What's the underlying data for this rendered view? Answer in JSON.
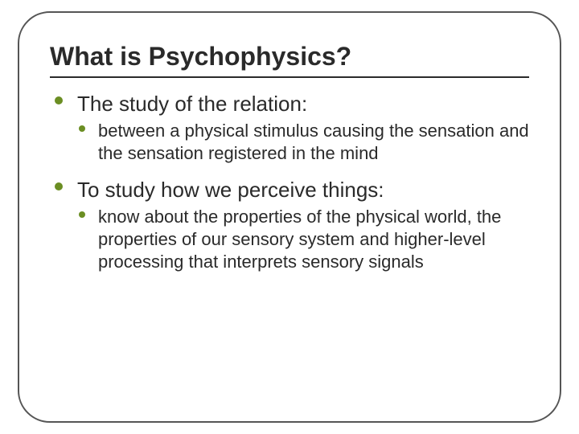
{
  "slide": {
    "title": "What is Psychophysics?",
    "title_fontsize": 32,
    "title_color": "#2a2a2a",
    "rule_color": "#2a2a2a",
    "frame_border_color": "#555555",
    "frame_border_radius": 40,
    "background_color": "#ffffff",
    "bullets": [
      {
        "text": "The study of the relation:",
        "font_size": 26,
        "color": "#2a2a2a",
        "bullet_color": "#6b8e23",
        "sub": [
          {
            "text": "between a physical stimulus causing the sensation and the sensation registered in the mind",
            "font_size": 22,
            "color": "#2a2a2a",
            "bullet_color": "#6b8e23"
          }
        ]
      },
      {
        "text": "To study how we perceive things:",
        "font_size": 26,
        "color": "#2a2a2a",
        "bullet_color": "#6b8e23",
        "sub": [
          {
            "text": "know about  the properties of the physical world, the properties of our sensory system and higher-level processing that interprets sensory signals",
            "font_size": 22,
            "color": "#2a2a2a",
            "bullet_color": "#6b8e23"
          }
        ]
      }
    ]
  }
}
